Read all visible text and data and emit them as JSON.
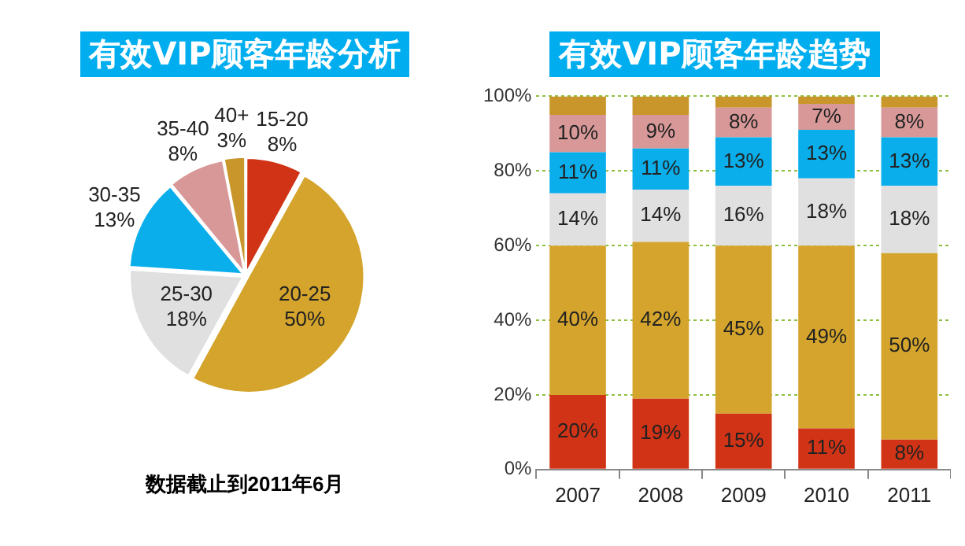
{
  "chart_data": [
    {
      "type": "pie",
      "title": "有效VIP顾客年龄分析",
      "categories": [
        "15-20",
        "20-25",
        "25-30",
        "30-35",
        "35-40",
        "40+"
      ],
      "values": [
        8,
        50,
        18,
        13,
        8,
        3
      ],
      "value_labels": [
        "8%",
        "50%",
        "18%",
        "13%",
        "8%",
        "3%"
      ],
      "colors": [
        "#d03316",
        "#d4a42c",
        "#e0e0e0",
        "#0aaeea",
        "#d89898",
        "#c8962a"
      ],
      "legend": false,
      "annotations": [
        "数据截止到2011年6月"
      ]
    },
    {
      "type": "bar",
      "title": "有效VIP顾客年龄趋势",
      "categories": [
        "2007",
        "2008",
        "2009",
        "2010",
        "2011"
      ],
      "stacked": true,
      "ylim": [
        0,
        100
      ],
      "yticks": [
        {
          "value": 0,
          "label": "0%"
        },
        {
          "value": 20,
          "label": "20%"
        },
        {
          "value": 40,
          "label": "40%"
        },
        {
          "value": 60,
          "label": "60%"
        },
        {
          "value": 80,
          "label": "80%"
        },
        {
          "value": 100,
          "label": "100%"
        }
      ],
      "grid": "y",
      "legend": false,
      "series": [
        {
          "color": "#d03316",
          "values": [
            20,
            19,
            15,
            11,
            8
          ],
          "value_labels": [
            "20%",
            "19%",
            "15%",
            "11%",
            "8%"
          ]
        },
        {
          "color": "#d4a42c",
          "values": [
            40,
            42,
            45,
            49,
            50
          ],
          "value_labels": [
            "40%",
            "42%",
            "45%",
            "49%",
            "50%"
          ]
        },
        {
          "color": "#e0e0e0",
          "values": [
            14,
            14,
            16,
            18,
            18
          ],
          "value_labels": [
            "14%",
            "14%",
            "16%",
            "18%",
            "18%"
          ]
        },
        {
          "color": "#0aaeea",
          "values": [
            11,
            11,
            13,
            13,
            13
          ],
          "value_labels": [
            "11%",
            "11%",
            "13%",
            "13%",
            "13%"
          ]
        },
        {
          "color": "#d89898",
          "values": [
            10,
            9,
            8,
            7,
            8
          ],
          "value_labels": [
            "10%",
            "9%",
            "8%",
            "7%",
            "8%"
          ]
        },
        {
          "color": "#c8962a",
          "values": [
            5,
            5,
            3,
            2,
            3
          ],
          "value_labels": [
            null,
            null,
            null,
            null,
            null
          ]
        }
      ]
    }
  ]
}
